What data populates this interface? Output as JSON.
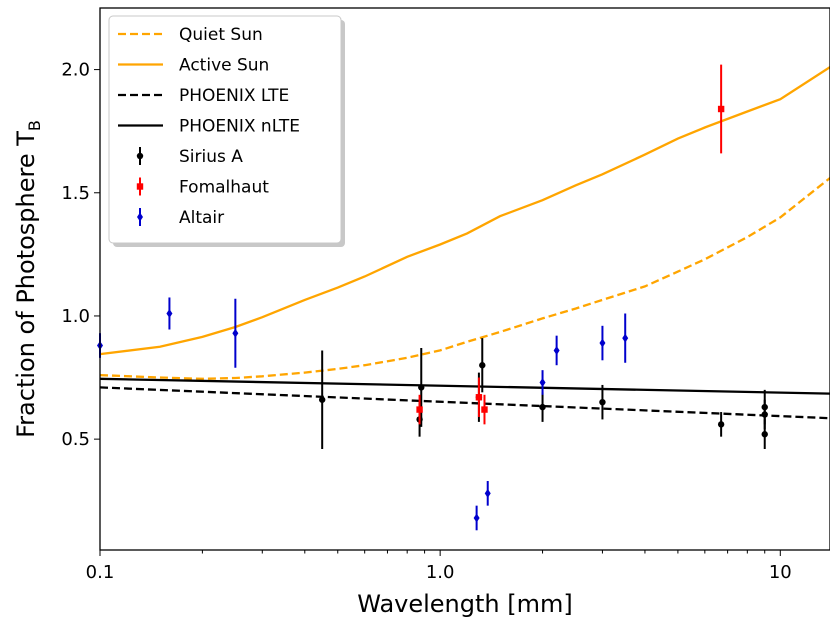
{
  "chart_data": {
    "type": "line",
    "xlabel": "Wavelength [mm]",
    "ylabel_main": "Fraction of Photosphere T",
    "ylabel_sub": "B",
    "xscale": "log",
    "xlim": [
      0.1,
      14
    ],
    "ylim": [
      0.05,
      2.25
    ],
    "xticks": [
      {
        "value": 0.1,
        "label": "0.1"
      },
      {
        "value": 1.0,
        "label": "1.0"
      },
      {
        "value": 10,
        "label": "10"
      }
    ],
    "yticks": [
      {
        "value": 0.5,
        "label": "0.5"
      },
      {
        "value": 1.0,
        "label": "1.0"
      },
      {
        "value": 1.5,
        "label": "1.5"
      },
      {
        "value": 2.0,
        "label": "2.0"
      }
    ],
    "grid": false,
    "legend_position": "top-left",
    "lines": [
      {
        "name": "Quiet Sun",
        "color": "#ffa500",
        "dash": "dashed",
        "x": [
          0.1,
          0.15,
          0.2,
          0.25,
          0.3,
          0.4,
          0.5,
          0.6,
          0.8,
          1.0,
          1.2,
          1.5,
          2.0,
          2.5,
          3.0,
          4.0,
          5.0,
          6.0,
          8.0,
          10.0,
          14.0
        ],
        "y": [
          0.76,
          0.75,
          0.745,
          0.748,
          0.755,
          0.77,
          0.785,
          0.8,
          0.83,
          0.86,
          0.895,
          0.935,
          0.99,
          1.03,
          1.065,
          1.12,
          1.18,
          1.23,
          1.32,
          1.4,
          1.56
        ]
      },
      {
        "name": "Active Sun",
        "color": "#ffa500",
        "dash": "solid",
        "x": [
          0.1,
          0.15,
          0.2,
          0.25,
          0.3,
          0.4,
          0.5,
          0.6,
          0.8,
          1.0,
          1.2,
          1.5,
          2.0,
          2.5,
          3.0,
          4.0,
          5.0,
          6.0,
          8.0,
          10.0,
          14.0
        ],
        "y": [
          0.845,
          0.875,
          0.915,
          0.955,
          0.995,
          1.065,
          1.115,
          1.16,
          1.24,
          1.29,
          1.335,
          1.405,
          1.47,
          1.53,
          1.575,
          1.655,
          1.72,
          1.765,
          1.83,
          1.88,
          2.01
        ]
      },
      {
        "name": "PHOENIX LTE",
        "color": "#000000",
        "dash": "dashed",
        "x": [
          0.1,
          14.0
        ],
        "y": [
          0.71,
          0.585
        ]
      },
      {
        "name": "PHOENIX nLTE",
        "color": "#000000",
        "dash": "solid",
        "x": [
          0.1,
          14.0
        ],
        "y": [
          0.745,
          0.685
        ]
      }
    ],
    "points": [
      {
        "name": "Sirius A",
        "color": "#000000",
        "marker": "circle",
        "data": [
          {
            "x": 0.45,
            "y": 0.66,
            "err": 0.2
          },
          {
            "x": 0.87,
            "y": 0.58,
            "err": 0.07
          },
          {
            "x": 0.88,
            "y": 0.71,
            "err": 0.16
          },
          {
            "x": 1.3,
            "y": 0.67,
            "err": 0.1
          },
          {
            "x": 1.33,
            "y": 0.8,
            "err": 0.11
          },
          {
            "x": 2.0,
            "y": 0.63,
            "err": 0.06
          },
          {
            "x": 3.0,
            "y": 0.65,
            "err": 0.07
          },
          {
            "x": 6.7,
            "y": 0.56,
            "err": 0.05
          },
          {
            "x": 9.0,
            "y": 0.52,
            "err": 0.06
          },
          {
            "x": 9.0,
            "y": 0.6,
            "err": 0.06
          },
          {
            "x": 9.0,
            "y": 0.63,
            "err": 0.07
          }
        ]
      },
      {
        "name": "Fomalhaut",
        "color": "#ff0000",
        "marker": "square",
        "data": [
          {
            "x": 0.87,
            "y": 0.62,
            "err": 0.06
          },
          {
            "x": 1.3,
            "y": 0.67,
            "err": 0.08
          },
          {
            "x": 1.35,
            "y": 0.62,
            "err": 0.06
          },
          {
            "x": 6.7,
            "y": 1.84,
            "err": 0.18
          }
        ]
      },
      {
        "name": "Altair",
        "color": "#0000cd",
        "marker": "diamond",
        "data": [
          {
            "x": 0.1,
            "y": 0.88,
            "err": 0.05
          },
          {
            "x": 0.16,
            "y": 1.01,
            "err": 0.065
          },
          {
            "x": 0.25,
            "y": 0.93,
            "err": 0.14
          },
          {
            "x": 1.28,
            "y": 0.18,
            "err": 0.05
          },
          {
            "x": 1.38,
            "y": 0.28,
            "err": 0.05
          },
          {
            "x": 2.0,
            "y": 0.73,
            "err": 0.05
          },
          {
            "x": 2.2,
            "y": 0.86,
            "err": 0.06
          },
          {
            "x": 3.0,
            "y": 0.89,
            "err": 0.07
          },
          {
            "x": 3.5,
            "y": 0.91,
            "err": 0.1
          }
        ]
      }
    ]
  }
}
